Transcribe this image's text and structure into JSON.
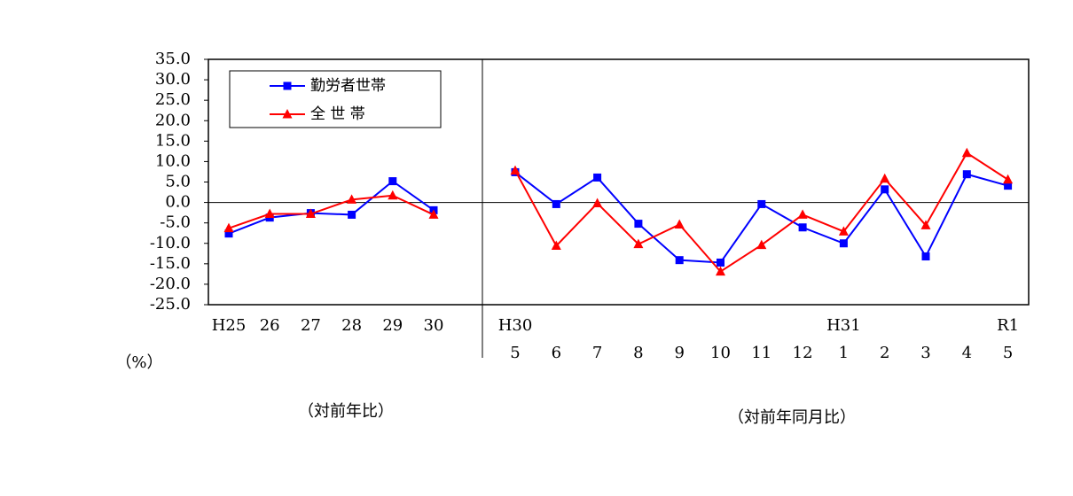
{
  "chart_data": {
    "type": "line",
    "ylim": [
      -25,
      35
    ],
    "yticks": [
      {
        "value": 35,
        "label": "35.0"
      },
      {
        "value": 30,
        "label": "30.0"
      },
      {
        "value": 25,
        "label": "25.0"
      },
      {
        "value": 20,
        "label": "20.0"
      },
      {
        "value": 15,
        "label": "15.0"
      },
      {
        "value": 10,
        "label": "10.0"
      },
      {
        "value": 5,
        "label": "5.0"
      },
      {
        "value": 0,
        "label": "0.0"
      },
      {
        "value": -5,
        "label": "-5.0"
      },
      {
        "value": -10,
        "label": "-10.0"
      },
      {
        "value": -15,
        "label": "-15.0"
      },
      {
        "value": -20,
        "label": "-20.0"
      },
      {
        "value": -25,
        "label": "-25.0"
      }
    ],
    "negative_tick_color": "#ff0000",
    "zero_line": true,
    "y_unit": "（%）",
    "legend_position": "upper left",
    "series": [
      {
        "name": "勤労者世帯",
        "color": "#0000ff",
        "marker": "square"
      },
      {
        "name": "全 世 帯",
        "color": "#ff0000",
        "marker": "triangle"
      }
    ],
    "panels": [
      {
        "caption": "（対前年比）",
        "categories": [
          "H25",
          "26",
          "27",
          "28",
          "29",
          "30"
        ],
        "series": [
          {
            "values": [
              -7.6,
              -3.7,
              -2.6,
              -3.0,
              5.2,
              -1.9
            ]
          },
          {
            "values": [
              -6.3,
              -2.8,
              -2.8,
              0.7,
              1.7,
              -3.0
            ]
          }
        ]
      },
      {
        "caption": "（対前年同月比）",
        "category_groups": [
          "H30",
          null,
          null,
          null,
          null,
          null,
          null,
          null,
          "H31",
          null,
          null,
          null,
          "R1"
        ],
        "categories": [
          "5",
          "6",
          "7",
          "8",
          "9",
          "10",
          "11",
          "12",
          "1",
          "2",
          "3",
          "4",
          "5"
        ],
        "series": [
          {
            "values": [
              7.4,
              -0.4,
              6.1,
              -5.2,
              -14.1,
              -14.7,
              -0.4,
              -6.1,
              -10.0,
              3.2,
              -13.2,
              6.9,
              4.1
            ]
          },
          {
            "values": [
              7.8,
              -10.6,
              -0.2,
              -10.2,
              -5.4,
              -16.9,
              -10.4,
              -3.0,
              -7.1,
              5.8,
              -5.6,
              12.1,
              5.6
            ]
          }
        ]
      }
    ]
  }
}
